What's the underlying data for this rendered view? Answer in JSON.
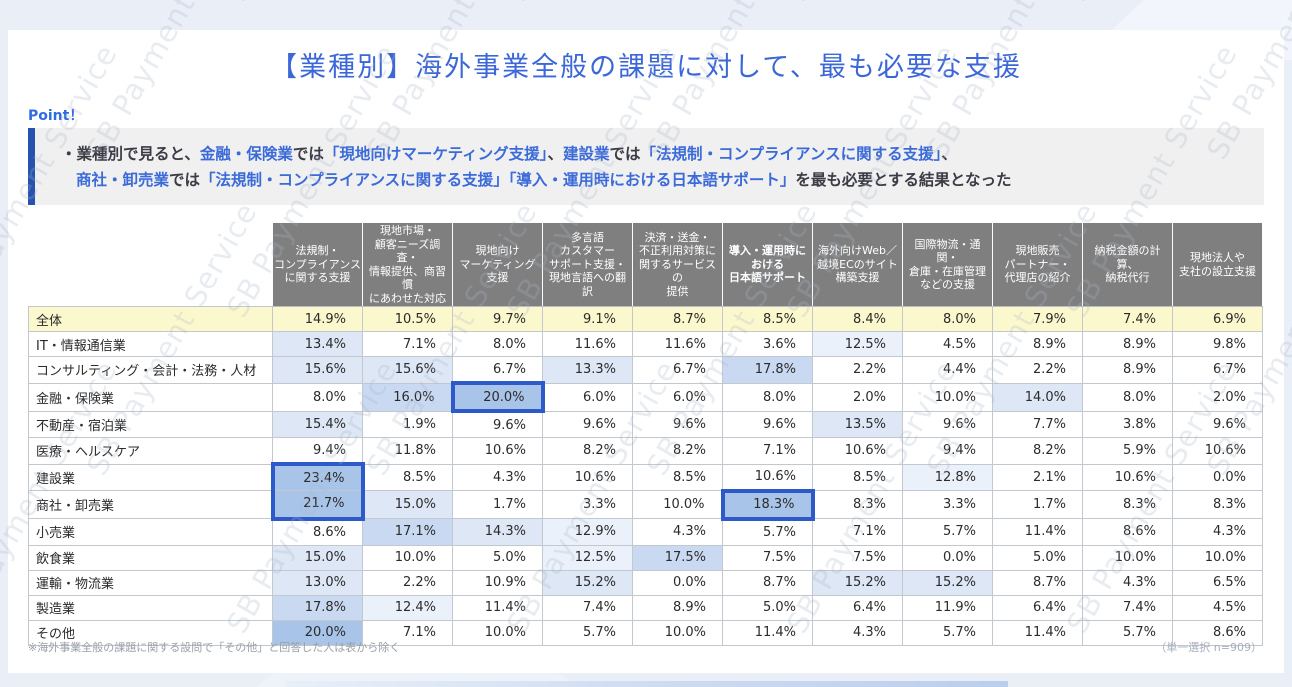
{
  "watermark": {
    "text": "SB Payment Service"
  },
  "title": "【業種別】海外事業全般の課題に対して、最も必要な支援",
  "point": {
    "label": "Point！",
    "lines": [
      [
        {
          "t": "・業種別で見ると、",
          "c": "dark"
        },
        {
          "t": "金融・保険業",
          "c": "blue"
        },
        {
          "t": "では",
          "c": "dark"
        },
        {
          "t": "「現地向けマーケティング支援」",
          "c": "blue"
        },
        {
          "t": "、",
          "c": "dark"
        },
        {
          "t": "建設業",
          "c": "blue"
        },
        {
          "t": "では",
          "c": "dark"
        },
        {
          "t": "「法規制・コンプライアンスに関する支援」",
          "c": "blue"
        },
        {
          "t": "、",
          "c": "dark"
        }
      ],
      [
        {
          "t": "商社・卸売業",
          "c": "blue"
        },
        {
          "t": "では",
          "c": "dark"
        },
        {
          "t": "「法規制・コンプライアンスに関する支援」「導入・運用時における日本語サポート」",
          "c": "blue"
        },
        {
          "t": "を最も必要とする結果となった",
          "c": "dark"
        }
      ]
    ]
  },
  "chart_data": {
    "type": "table",
    "value_unit": "%",
    "columns": [
      {
        "lines": [
          "法規制・",
          "コンプライアンス",
          "に関する支援"
        ],
        "bold": false
      },
      {
        "lines": [
          "現地市場・",
          "顧客ニーズ調査・",
          "情報提供、商習慣",
          "にあわせた対応"
        ],
        "bold": false
      },
      {
        "lines": [
          "現地向け",
          "マーケティング",
          "支援"
        ],
        "bold": false
      },
      {
        "lines": [
          "多言語",
          "カスタマー",
          "サポート支援・",
          "現地言語への翻訳"
        ],
        "bold": false
      },
      {
        "lines": [
          "決済・送金・",
          "不正利用対策に",
          "関するサービスの",
          "提供"
        ],
        "bold": false
      },
      {
        "lines": [
          "導入・運用時に",
          "おける",
          "日本語サポート"
        ],
        "bold": true
      },
      {
        "lines": [
          "海外向けWeb／",
          "越境ECのサイト",
          "構築支援"
        ],
        "bold": false
      },
      {
        "lines": [
          "国際物流・通関・",
          "倉庫・在庫管理",
          "などの支援"
        ],
        "bold": false
      },
      {
        "lines": [
          "現地販売",
          "パートナー・",
          "代理店の紹介"
        ],
        "bold": false
      },
      {
        "lines": [
          "納税金額の計算、",
          "納税代行"
        ],
        "bold": false
      },
      {
        "lines": [
          "現地法人や",
          "支社の設立支援"
        ],
        "bold": false
      }
    ],
    "rows": [
      {
        "label": "全体",
        "total": true,
        "values": [
          14.9,
          10.5,
          9.7,
          9.1,
          8.7,
          8.5,
          8.4,
          8.0,
          7.9,
          7.4,
          6.9
        ]
      },
      {
        "label": "IT・情報通信業",
        "total": false,
        "values": [
          13.4,
          7.1,
          8.0,
          11.6,
          11.6,
          3.6,
          12.5,
          4.5,
          8.9,
          8.9,
          9.8
        ]
      },
      {
        "label": "コンサルティング・会計・法務・人材",
        "total": false,
        "values": [
          15.6,
          15.6,
          6.7,
          13.3,
          6.7,
          17.8,
          2.2,
          4.4,
          2.2,
          8.9,
          6.7
        ]
      },
      {
        "label": "金融・保険業",
        "total": false,
        "values": [
          8.0,
          16.0,
          20.0,
          6.0,
          6.0,
          8.0,
          2.0,
          10.0,
          14.0,
          8.0,
          2.0
        ]
      },
      {
        "label": "不動産・宿泊業",
        "total": false,
        "values": [
          15.4,
          1.9,
          9.6,
          9.6,
          9.6,
          9.6,
          13.5,
          9.6,
          7.7,
          3.8,
          9.6
        ]
      },
      {
        "label": "医療・ヘルスケア",
        "total": false,
        "values": [
          9.4,
          11.8,
          10.6,
          8.2,
          8.2,
          7.1,
          10.6,
          9.4,
          8.2,
          5.9,
          10.6
        ]
      },
      {
        "label": "建設業",
        "total": false,
        "values": [
          23.4,
          8.5,
          4.3,
          10.6,
          8.5,
          10.6,
          8.5,
          12.8,
          2.1,
          10.6,
          0.0
        ]
      },
      {
        "label": "商社・卸売業",
        "total": false,
        "values": [
          21.7,
          15.0,
          1.7,
          3.3,
          10.0,
          18.3,
          8.3,
          3.3,
          1.7,
          8.3,
          8.3
        ]
      },
      {
        "label": "小売業",
        "total": false,
        "values": [
          8.6,
          17.1,
          14.3,
          12.9,
          4.3,
          5.7,
          7.1,
          5.7,
          11.4,
          8.6,
          4.3
        ]
      },
      {
        "label": "飲食業",
        "total": false,
        "values": [
          15.0,
          10.0,
          5.0,
          12.5,
          17.5,
          7.5,
          7.5,
          0.0,
          5.0,
          10.0,
          10.0
        ]
      },
      {
        "label": "運輸・物流業",
        "total": false,
        "values": [
          13.0,
          2.2,
          10.9,
          15.2,
          0.0,
          8.7,
          15.2,
          15.2,
          8.7,
          4.3,
          6.5
        ]
      },
      {
        "label": "製造業",
        "total": false,
        "values": [
          17.8,
          12.4,
          11.4,
          7.4,
          8.9,
          5.0,
          6.4,
          11.9,
          6.4,
          7.4,
          4.5
        ]
      },
      {
        "label": "その他",
        "total": false,
        "values": [
          20.0,
          7.1,
          10.0,
          5.7,
          10.0,
          11.4,
          4.3,
          5.7,
          11.4,
          5.7,
          8.6
        ]
      }
    ],
    "highlights": [
      {
        "row": 3,
        "col": 2,
        "edges": [
          "top",
          "right",
          "bottom",
          "left"
        ]
      },
      {
        "row": 6,
        "col": 0,
        "edges": [
          "top",
          "right",
          "left"
        ]
      },
      {
        "row": 7,
        "col": 0,
        "edges": [
          "right",
          "bottom",
          "left"
        ]
      },
      {
        "row": 7,
        "col": 5,
        "edges": [
          "top",
          "right",
          "bottom",
          "left"
        ]
      }
    ],
    "highlight_border_color": "#2e59c9",
    "total_row_color": "#fcf8cd",
    "shade_scale": [
      {
        "min": 18.0,
        "color": "#a9c4e9"
      },
      {
        "min": 16.0,
        "color": "#c9d9f1"
      },
      {
        "min": 13.0,
        "color": "#dde7f6"
      },
      {
        "min": 12.3,
        "color": "#ebf1fa"
      }
    ]
  },
  "footnotes": {
    "left": "※海外事業全般の課題に関する設問で「その他」と回答した人は表から除く",
    "right": "（単一選択 n=909）"
  }
}
